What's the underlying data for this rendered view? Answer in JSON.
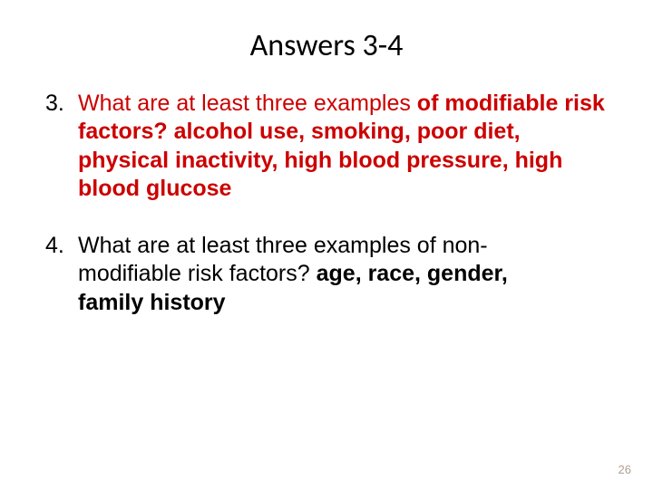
{
  "title": "Answers 3-4",
  "items": [
    {
      "number": "3.",
      "q_prefix": "What are at least three examples ",
      "q_bold": "of modifiable  risk factors? ",
      "answer": "alcohol use, smoking, poor diet,  physical inactivity, high blood pressure, high  blood glucose",
      "color": "#cc0000"
    },
    {
      "number": "4.",
      "q_text": "What are at least three examples of non-modifiable risk factors? ",
      "answer": "age, race, gender,  family history",
      "color": "#000000"
    }
  ],
  "page_number": "26",
  "colors": {
    "text": "#000000",
    "answer3": "#cc0000",
    "answer4": "#000000",
    "page_num": "#b0a090",
    "background": "#ffffff"
  },
  "typography": {
    "title_fontsize": 34,
    "body_fontsize": 25,
    "page_num_fontsize": 13
  }
}
